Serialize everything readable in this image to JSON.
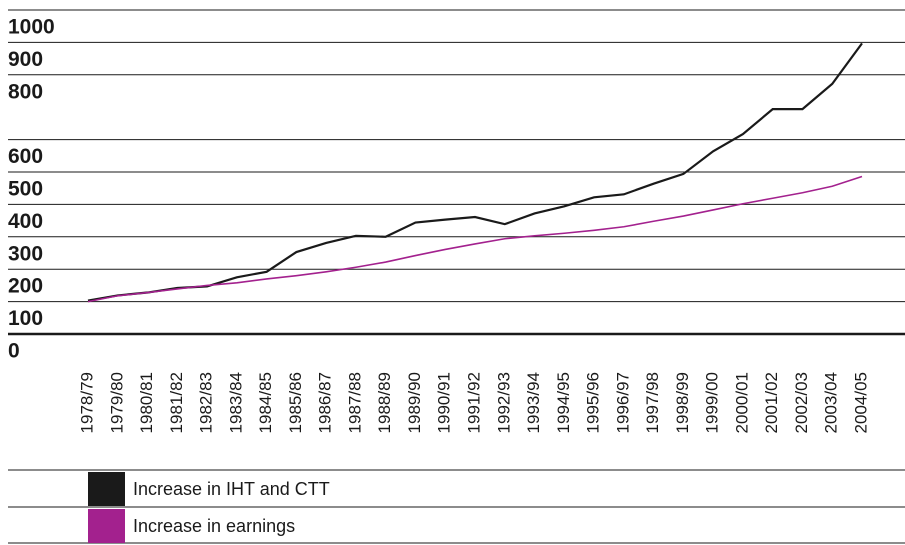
{
  "chart_data": {
    "type": "line",
    "categories": [
      "1978/79",
      "1979/80",
      "1980/81",
      "1981/82",
      "1982/83",
      "1983/84",
      "1984/85",
      "1985/86",
      "1986/87",
      "1987/88",
      "1988/89",
      "1989/90",
      "1990/91",
      "1991/92",
      "1992/93",
      "1993/94",
      "1994/95",
      "1995/96",
      "1996/97",
      "1997/98",
      "1998/99",
      "1999/00",
      "2000/01",
      "2001/02",
      "2002/03",
      "2003/04",
      "2004/05"
    ],
    "series": [
      {
        "name": "Increase in IHT and CTT",
        "color": "#1a1a1a",
        "values": [
          103,
          119,
          128,
          142,
          147,
          175,
          192,
          253,
          281,
          303,
          300,
          344,
          353,
          361,
          339,
          372,
          394,
          422,
          431,
          464,
          494,
          564,
          617,
          694,
          694,
          772,
          897
        ]
      },
      {
        "name": "Increase in earnings",
        "color": "#a3218e",
        "values": [
          100,
          118,
          128,
          139,
          150,
          158,
          170,
          180,
          192,
          206,
          222,
          242,
          261,
          278,
          294,
          303,
          311,
          320,
          331,
          348,
          364,
          383,
          402,
          419,
          436,
          456,
          486
        ]
      }
    ],
    "ylim": [
      0,
      1000
    ],
    "yticks": [
      0,
      100,
      200,
      300,
      400,
      500,
      600,
      800,
      900,
      1000
    ],
    "grid": true
  }
}
